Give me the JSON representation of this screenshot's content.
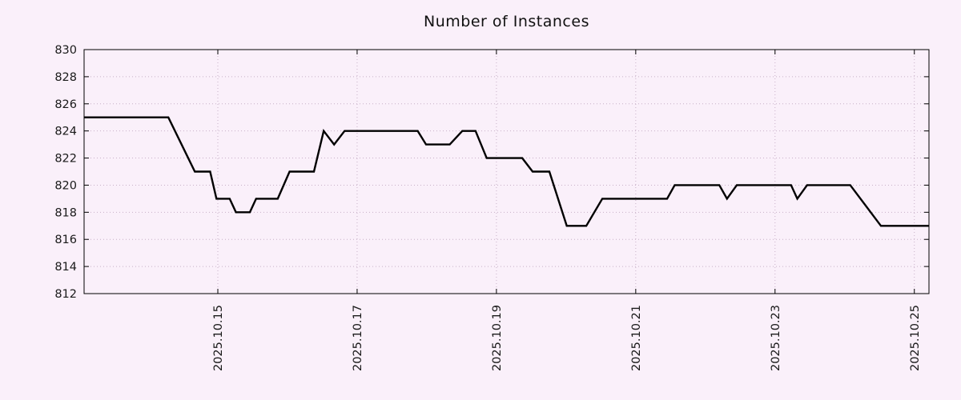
{
  "chart_data": {
    "type": "line",
    "title": "Number of Instances",
    "xlabel": "",
    "ylabel": "",
    "x_range": [
      13.08,
      25.21
    ],
    "y_range": [
      812,
      830
    ],
    "grid": true,
    "legend": "none",
    "x_ticks": [
      {
        "pos": 15,
        "label": "2025.10.15"
      },
      {
        "pos": 17,
        "label": "2025.10.17"
      },
      {
        "pos": 19,
        "label": "2025.10.19"
      },
      {
        "pos": 21,
        "label": "2025.10.21"
      },
      {
        "pos": 23,
        "label": "2025.10.23"
      },
      {
        "pos": 25,
        "label": "2025.10.25"
      }
    ],
    "y_ticks": [
      812,
      814,
      816,
      818,
      820,
      822,
      824,
      826,
      828,
      830
    ],
    "series": [
      {
        "name": "instances",
        "color": "#000000",
        "points": [
          [
            13.08,
            825
          ],
          [
            14.29,
            825
          ],
          [
            14.67,
            821
          ],
          [
            14.89,
            821
          ],
          [
            14.98,
            819
          ],
          [
            15.17,
            819
          ],
          [
            15.26,
            818
          ],
          [
            15.46,
            818
          ],
          [
            15.55,
            819
          ],
          [
            15.86,
            819
          ],
          [
            16.03,
            821
          ],
          [
            16.38,
            821
          ],
          [
            16.52,
            824
          ],
          [
            16.67,
            823
          ],
          [
            16.82,
            824
          ],
          [
            17.87,
            824
          ],
          [
            17.99,
            823
          ],
          [
            18.33,
            823
          ],
          [
            18.51,
            824
          ],
          [
            18.7,
            824
          ],
          [
            18.86,
            822
          ],
          [
            19.37,
            822
          ],
          [
            19.52,
            821
          ],
          [
            19.76,
            821
          ],
          [
            20.01,
            817
          ],
          [
            20.29,
            817
          ],
          [
            20.52,
            819
          ],
          [
            21.45,
            819
          ],
          [
            21.56,
            820
          ],
          [
            22.2,
            820
          ],
          [
            22.31,
            819
          ],
          [
            22.45,
            820
          ],
          [
            23.23,
            820
          ],
          [
            23.32,
            819
          ],
          [
            23.46,
            820
          ],
          [
            24.08,
            820
          ],
          [
            24.52,
            817
          ],
          [
            25.21,
            817
          ]
        ]
      }
    ],
    "colors": {
      "background": "#faf0fa",
      "plot_border": "#000000",
      "grid": "#c8b0c8",
      "line": "#000000",
      "text": "#1a1a1a"
    }
  }
}
